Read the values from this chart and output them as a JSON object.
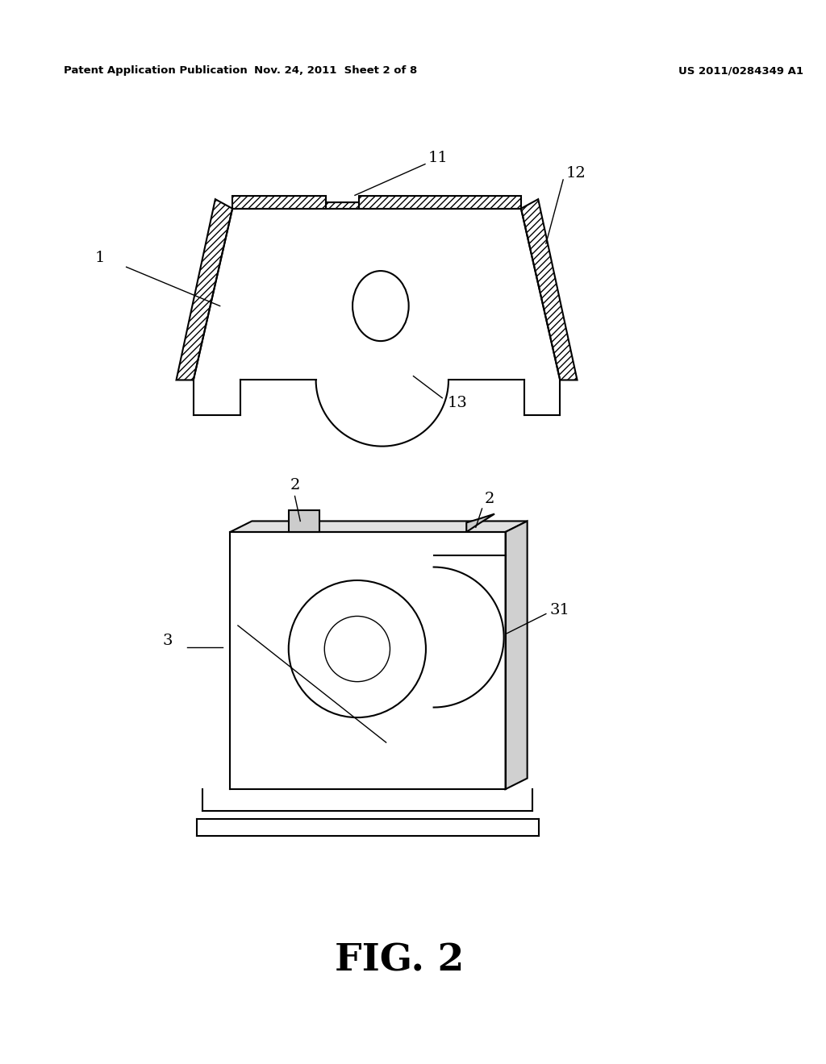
{
  "bg_color": "#ffffff",
  "line_color": "#000000",
  "header_left": "Patent Application Publication",
  "header_center": "Nov. 24, 2011  Sheet 2 of 8",
  "header_right": "US 2011/0284349 A1",
  "fig_label": "FIG. 2"
}
